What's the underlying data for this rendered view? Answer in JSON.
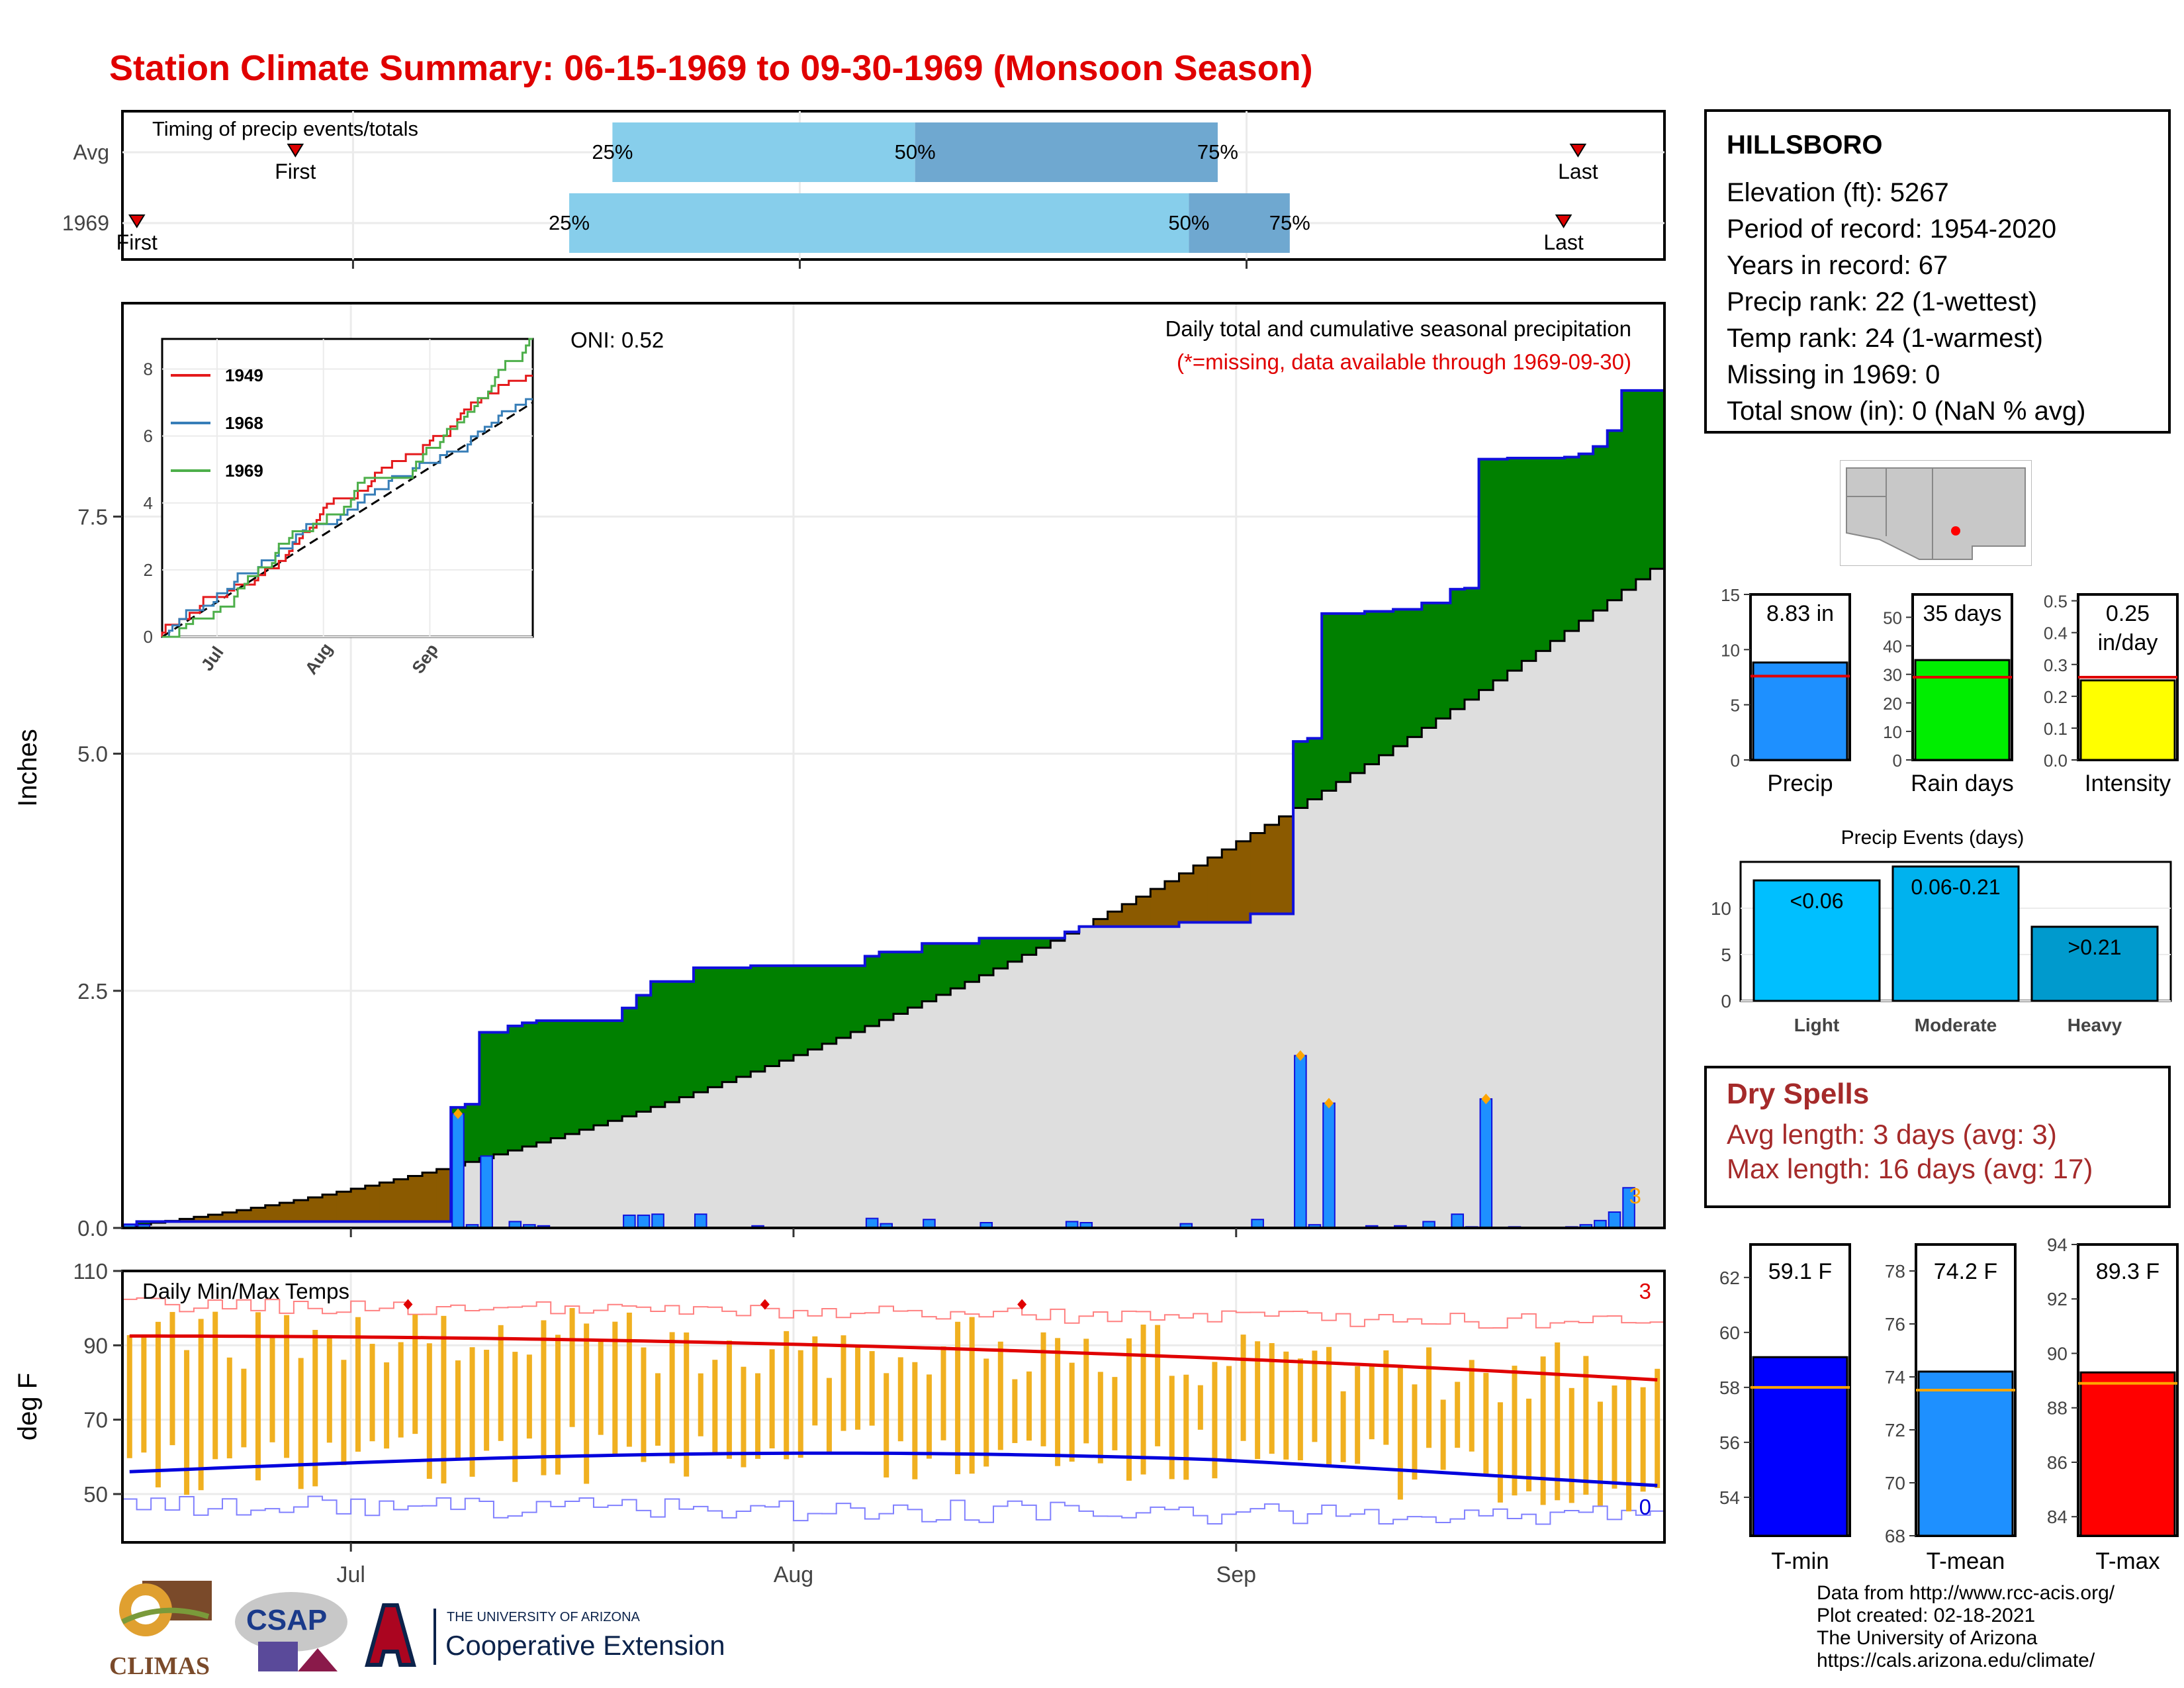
{
  "title": "Station Climate Summary: 06-15-1969 to 09-30-1969 (Monsoon Season)",
  "timing": {
    "label": "Timing of precip events/totals",
    "rows": [
      {
        "name": "Avg",
        "first": "First",
        "last": "Last",
        "first_date": "1969-06-27",
        "last_date": "1969-09-24",
        "p25": "25%",
        "p50": "50%",
        "p75": "75%",
        "p25_date": "1969-07-19",
        "p50_date": "1969-08-09",
        "p75_date": "1969-08-30"
      },
      {
        "name": "1969",
        "first": "First",
        "last": "Last",
        "first_date": "1969-06-16",
        "last_date": "1969-09-23",
        "p25": "25%",
        "p50": "50%",
        "p75": "75%",
        "p25_date": "1969-07-16",
        "p50_date": "1969-08-28",
        "p75_date": "1969-09-04"
      }
    ]
  },
  "main_chart": {
    "ylabel": "Inches",
    "yticks": [
      "0.0",
      "2.5",
      "5.0",
      "7.5"
    ],
    "xticks": [
      "Jul",
      "Aug",
      "Sep"
    ],
    "oni": "ONI: 0.52",
    "legend_title": "Daily total and cumulative seasonal precipitation",
    "legend_note": "(*=missing, data available through 1969-09-30)",
    "count_label": "3",
    "colors": {
      "above": "#008000",
      "below": "#8b5a00",
      "avg_fill": "#dedede",
      "daily_bar": "#1e90ff",
      "cum_line": "#1010dd"
    }
  },
  "inset": {
    "yticks": [
      "0",
      "2",
      "4",
      "6",
      "8"
    ],
    "xticks": [
      "Jul",
      "Aug",
      "Sep"
    ],
    "legend": [
      {
        "name": "1949",
        "color": "#e41a1c"
      },
      {
        "name": "1968",
        "color": "#377eb8"
      },
      {
        "name": "1969",
        "color": "#4daf4a"
      }
    ]
  },
  "temp_chart": {
    "ylabel": "deg F",
    "yticks": [
      "50",
      "70",
      "90",
      "110"
    ],
    "label": "Daily Min/Max Temps",
    "max_count": "3",
    "min_count": "0"
  },
  "station": {
    "name": "HILLSBORO",
    "lines": [
      "Elevation (ft): 5267",
      "Period of record: 1954-2020",
      "Years in record: 67",
      "Precip rank: 22 (1-wettest)",
      "Temp rank: 24 (1-warmest)",
      "Missing in 1969: 0",
      "Total snow (in): 0 (NaN % avg)"
    ]
  },
  "summary_bars": [
    {
      "label": "Precip",
      "value_text": "8.83 in",
      "value": 8.83,
      "avg": 7.6,
      "ymax": 15,
      "yticks": [
        "0",
        "5",
        "10",
        "15"
      ],
      "color": "#1e90ff"
    },
    {
      "label": "Rain days",
      "value_text": "35 days",
      "value": 35,
      "avg": 29,
      "ymax": 58,
      "yticks": [
        "0",
        "10",
        "20",
        "30",
        "40",
        "50"
      ],
      "color": "#00ee00"
    },
    {
      "label": "Intensity",
      "value_text": "0.25 in/day",
      "value": 0.25,
      "avg": 0.26,
      "ymax": 0.52,
      "yticks": [
        "0.0",
        "0.1",
        "0.2",
        "0.3",
        "0.4",
        "0.5"
      ],
      "color": "#ffff00"
    }
  ],
  "precip_events": {
    "title": "Precip Events (days)",
    "yticks": [
      "0",
      "5",
      "10"
    ],
    "bars": [
      {
        "label": "Light",
        "range": "<0.06",
        "value": 13,
        "color": "#00bfff"
      },
      {
        "label": "Moderate",
        "range": "0.06-0.21",
        "value": 14.5,
        "color": "#00b2ee"
      },
      {
        "label": "Heavy",
        "range": ">0.21",
        "value": 8,
        "color": "#009acd"
      }
    ]
  },
  "dry_spells": {
    "title": "Dry Spells",
    "avg_length": "Avg length: 3 days (avg: 3)",
    "max_length": "Max length: 16 days (avg: 17)"
  },
  "temp_bars": [
    {
      "label": "T-min",
      "value_text": "59.1 F",
      "value": 59.1,
      "avg": 58.0,
      "ymin": 52.6,
      "ymax": 63.2,
      "yticks": [
        "54",
        "56",
        "58",
        "60",
        "62"
      ],
      "color": "#0000ff"
    },
    {
      "label": "T-mean",
      "value_text": "74.2 F",
      "value": 74.2,
      "avg": 73.5,
      "ymin": 68,
      "ymax": 79,
      "yticks": [
        "68",
        "70",
        "72",
        "74",
        "76",
        "78"
      ],
      "color": "#1e90ff"
    },
    {
      "label": "T-max",
      "value_text": "89.3 F",
      "value": 89.3,
      "avg": 88.9,
      "ymin": 83.3,
      "ymax": 94,
      "yticks": [
        "84",
        "86",
        "88",
        "90",
        "92",
        "94"
      ],
      "color": "#ff0000"
    }
  ],
  "credits": {
    "lines": [
      "Data from http://www.rcc-acis.org/",
      "Plot created: 02-18-2021",
      "The University of Arizona",
      "https://cals.arizona.edu/climate/"
    ],
    "climas": "CLIMAS",
    "csap": "CSAP",
    "ua_small": "THE UNIVERSITY OF ARIZONA",
    "ua_large": "Cooperative Extension"
  }
}
